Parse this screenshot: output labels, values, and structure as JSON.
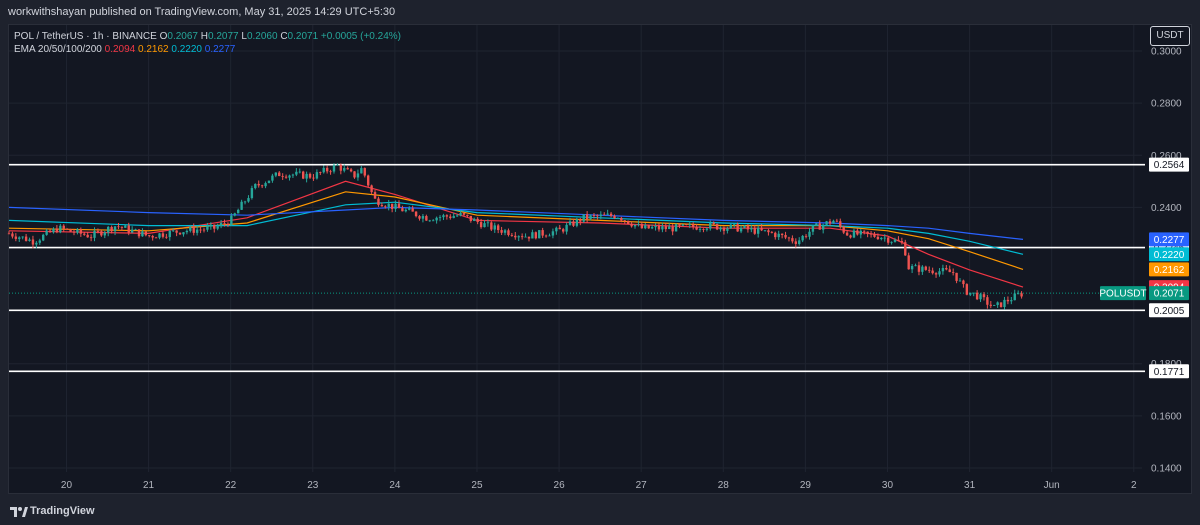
{
  "header": {
    "published_text": "workwithshayan published on TradingView.com, May 31, 2025 14:29 UTC+5:30"
  },
  "legend": {
    "symbol": "POL / TetherUS · 1h · BINANCE",
    "o_label": "O",
    "o_value": "0.2067",
    "h_label": "H",
    "h_value": "0.2077",
    "l_label": "L",
    "l_value": "0.2060",
    "c_label": "C",
    "c_value": "0.2071",
    "change": "+0.0005 (+0.24%)",
    "ema_label": "EMA 20/50/100/200",
    "ema_values": [
      "0.2094",
      "0.2162",
      "0.2220",
      "0.2277"
    ]
  },
  "currency_button": "USDT",
  "footer": {
    "brand": "TradingView"
  },
  "colors": {
    "up": "#26a69a",
    "down": "#ef5350",
    "ema20": "#f23645",
    "ema50": "#ff9800",
    "ema100": "#00bcd4",
    "ema200": "#2962ff",
    "level": "#ffffff",
    "last_price": "#089981"
  },
  "chart_data": {
    "type": "candlestick",
    "title": "POL / TetherUS · 1h · BINANCE",
    "ylim": [
      0.13,
      0.31
    ],
    "y_ticks": [
      "0.3000",
      "0.2800",
      "0.2600",
      "0.2400",
      "0.1800",
      "0.1600",
      "0.1400"
    ],
    "x_ticks": [
      "20",
      "21",
      "22",
      "23",
      "24",
      "25",
      "26",
      "27",
      "28",
      "29",
      "30",
      "31",
      "Jun",
      "2"
    ],
    "x_range_days": [
      19.3,
      33.1
    ],
    "price_series": [
      [
        19.3,
        0.23
      ],
      [
        19.6,
        0.227
      ],
      [
        19.9,
        0.232
      ],
      [
        20.3,
        0.229
      ],
      [
        20.6,
        0.233
      ],
      [
        21.0,
        0.229
      ],
      [
        21.4,
        0.231
      ],
      [
        21.8,
        0.232
      ],
      [
        22.0,
        0.235
      ],
      [
        22.3,
        0.248
      ],
      [
        22.6,
        0.253
      ],
      [
        23.0,
        0.252
      ],
      [
        23.3,
        0.256
      ],
      [
        23.5,
        0.252
      ],
      [
        23.6,
        0.255
      ],
      [
        23.75,
        0.243
      ],
      [
        24.0,
        0.24
      ],
      [
        24.4,
        0.236
      ],
      [
        24.8,
        0.237
      ],
      [
        25.2,
        0.232
      ],
      [
        25.6,
        0.229
      ],
      [
        26.0,
        0.231
      ],
      [
        26.3,
        0.236
      ],
      [
        26.7,
        0.237
      ],
      [
        27.0,
        0.232
      ],
      [
        27.4,
        0.232
      ],
      [
        27.8,
        0.233
      ],
      [
        28.2,
        0.232
      ],
      [
        28.6,
        0.23
      ],
      [
        28.9,
        0.227
      ],
      [
        29.1,
        0.232
      ],
      [
        29.35,
        0.235
      ],
      [
        29.5,
        0.23
      ],
      [
        29.9,
        0.229
      ],
      [
        30.2,
        0.226
      ],
      [
        30.25,
        0.217
      ],
      [
        30.5,
        0.216
      ],
      [
        30.8,
        0.215
      ],
      [
        30.95,
        0.208
      ],
      [
        31.1,
        0.206
      ],
      [
        31.3,
        0.2015
      ],
      [
        31.5,
        0.205
      ],
      [
        31.65,
        0.2071
      ]
    ],
    "series": [
      {
        "name": "EMA 20",
        "points": [
          [
            19.3,
            0.231
          ],
          [
            21.0,
            0.23
          ],
          [
            22.2,
            0.236
          ],
          [
            23.4,
            0.25
          ],
          [
            24.0,
            0.245
          ],
          [
            25.0,
            0.235
          ],
          [
            26.5,
            0.234
          ],
          [
            28.0,
            0.232
          ],
          [
            29.3,
            0.232
          ],
          [
            30.0,
            0.229
          ],
          [
            30.5,
            0.222
          ],
          [
            31.0,
            0.216
          ],
          [
            31.65,
            0.2094
          ]
        ]
      },
      {
        "name": "EMA 50",
        "points": [
          [
            19.3,
            0.232
          ],
          [
            21.0,
            0.231
          ],
          [
            22.2,
            0.234
          ],
          [
            23.4,
            0.246
          ],
          [
            24.0,
            0.244
          ],
          [
            25.0,
            0.237
          ],
          [
            26.5,
            0.235
          ],
          [
            28.0,
            0.233
          ],
          [
            29.3,
            0.233
          ],
          [
            30.0,
            0.231
          ],
          [
            30.5,
            0.228
          ],
          [
            31.0,
            0.223
          ],
          [
            31.65,
            0.2162
          ]
        ]
      },
      {
        "name": "EMA 100",
        "points": [
          [
            19.3,
            0.235
          ],
          [
            21.0,
            0.233
          ],
          [
            22.2,
            0.233
          ],
          [
            23.4,
            0.241
          ],
          [
            24.0,
            0.242
          ],
          [
            25.0,
            0.238
          ],
          [
            26.5,
            0.236
          ],
          [
            28.0,
            0.234
          ],
          [
            29.3,
            0.233
          ],
          [
            30.0,
            0.232
          ],
          [
            30.5,
            0.23
          ],
          [
            31.0,
            0.227
          ],
          [
            31.65,
            0.222
          ]
        ]
      },
      {
        "name": "EMA 200",
        "points": [
          [
            19.3,
            0.24
          ],
          [
            21.0,
            0.238
          ],
          [
            22.2,
            0.237
          ],
          [
            23.4,
            0.239
          ],
          [
            24.0,
            0.24
          ],
          [
            25.0,
            0.239
          ],
          [
            26.5,
            0.237
          ],
          [
            28.0,
            0.235
          ],
          [
            29.3,
            0.234
          ],
          [
            30.0,
            0.233
          ],
          [
            30.5,
            0.232
          ],
          [
            31.0,
            0.23
          ],
          [
            31.65,
            0.2277
          ]
        ]
      }
    ],
    "horizontal_levels": [
      "0.2564",
      "0.2246",
      "0.2005",
      "0.1771"
    ],
    "price_labels": [
      {
        "text": "0.2277",
        "value": 0.2277,
        "color": "#2962ff"
      },
      {
        "text": "0.2220",
        "value": 0.222,
        "color": "#00bcd4"
      },
      {
        "text": "0.2162",
        "value": 0.2162,
        "color": "#ff9800"
      },
      {
        "text": "0.2094",
        "value": 0.2094,
        "color": "#f23645"
      }
    ],
    "last_price": {
      "symbol": "POLUSDT",
      "text": "0.2071",
      "value": 0.2071
    }
  }
}
